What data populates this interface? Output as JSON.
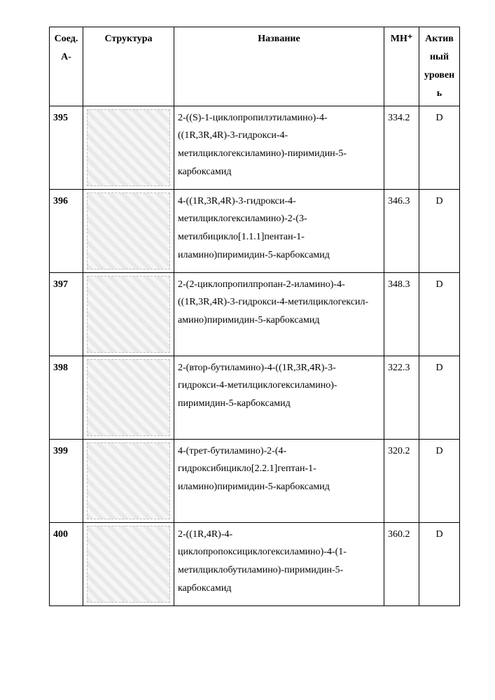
{
  "table": {
    "headers": {
      "id": "Соед. А-",
      "structure": "Структура",
      "name": "Название",
      "mh": "MH⁺",
      "activity": "Актив ный уровен ь"
    },
    "rows": [
      {
        "id": "395",
        "structure_alt": "structure 395",
        "name": "2-((S)-1-циклопропилэтиламино)-4-((1R,3R,4R)-3-гидрокси-4-метилциклогексиламино)-пиримидин-5-карбоксамид",
        "mh": "334.2",
        "activity": "D"
      },
      {
        "id": "396",
        "structure_alt": "structure 396",
        "name": "4-((1R,3R,4R)-3-гидрокси-4-метилциклогексиламино)-2-(3-метилбицикло[1.1.1]пентан-1-иламино)пиримидин-5-карбоксамид",
        "mh": "346.3",
        "activity": "D"
      },
      {
        "id": "397",
        "structure_alt": "structure 397",
        "name": "2-(2-циклопропилпропан-2-иламино)-4-((1R,3R,4R)-3-гидрокси-4-метилциклогексил-амино)пиримидин-5-карбоксамид",
        "mh": "348.3",
        "activity": "D"
      },
      {
        "id": "398",
        "structure_alt": "structure 398",
        "name": "2-(втор-бутиламино)-4-((1R,3R,4R)-3-гидрокси-4-метилциклогексиламино)-пиримидин-5-карбоксамид",
        "mh": "322.3",
        "activity": "D"
      },
      {
        "id": "399",
        "structure_alt": "structure 399",
        "name": "4-(трет-бутиламино)-2-(4-гидроксибицикло[2.2.1]гептан-1-иламино)пиримидин-5-карбоксамид",
        "mh": "320.2",
        "activity": "D"
      },
      {
        "id": "400",
        "structure_alt": "structure 400",
        "name": "2-((1R,4R)-4-циклопропоксициклогексиламино)-4-(1-метилциклобутиламино)-пиримидин-5-карбоксамид",
        "mh": "360.2",
        "activity": "D"
      }
    ]
  }
}
